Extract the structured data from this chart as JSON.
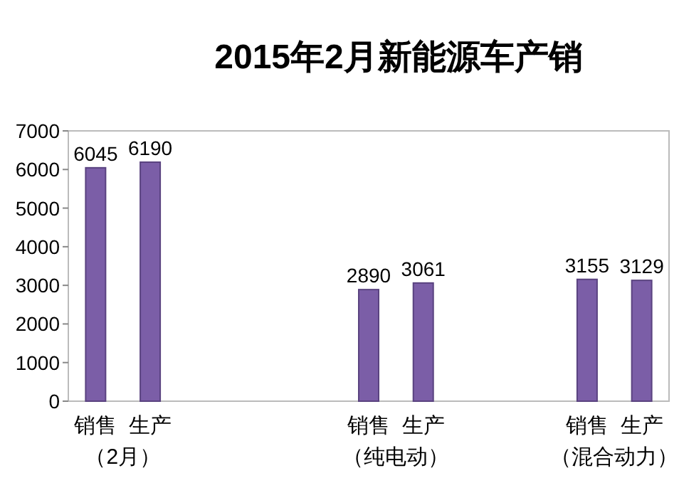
{
  "chart_data": {
    "type": "bar",
    "title": "2015年2月新能源车产销",
    "categories": [
      "销售",
      "生产",
      null,
      null,
      null,
      "销售",
      "生产",
      null,
      null,
      "销售",
      "生产"
    ],
    "values": [
      6045,
      6190,
      null,
      null,
      null,
      2890,
      3061,
      null,
      null,
      3155,
      3129
    ],
    "color": "#7b5ea7",
    "ylim": [
      0,
      7000
    ],
    "yticks": [
      0,
      1000,
      2000,
      3000,
      4000,
      5000,
      6000,
      7000
    ],
    "data_labels": true,
    "grid": false,
    "annotations": [
      "（2月）",
      "（纯电动）",
      "（混合动力）"
    ]
  }
}
